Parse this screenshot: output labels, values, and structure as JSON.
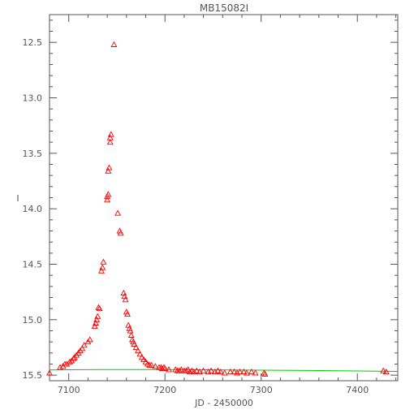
{
  "chart_data": {
    "type": "scatter",
    "title": "MB15082I",
    "xlabel": "JD - 2450000",
    "ylabel": "I",
    "xlim": [
      7080,
      7442
    ],
    "ylim": [
      15.55,
      12.25
    ],
    "y_inverted": true,
    "grid": false,
    "x_ticks": [
      7100,
      7200,
      7300,
      7400
    ],
    "y_ticks": [
      12.5,
      13.0,
      13.5,
      14.0,
      14.5,
      15.0,
      15.5
    ],
    "x_tick_labels": [
      "7100",
      "7200",
      "7300",
      "7400"
    ],
    "y_tick_labels": [
      "12.5",
      "13.0",
      "13.5",
      "14.0",
      "14.5",
      "15.0",
      "15.5"
    ],
    "series": [
      {
        "marker": "triangle",
        "color": "#ff0000",
        "points": [
          [
            7080,
            15.48
          ],
          [
            7091,
            15.43
          ],
          [
            7094,
            15.42
          ],
          [
            7096,
            15.4
          ],
          [
            7098,
            15.4
          ],
          [
            7101,
            15.38
          ],
          [
            7103,
            15.37
          ],
          [
            7105,
            15.35
          ],
          [
            7106,
            15.34
          ],
          [
            7108,
            15.32
          ],
          [
            7110,
            15.3
          ],
          [
            7112,
            15.28
          ],
          [
            7114,
            15.26
          ],
          [
            7116,
            15.23
          ],
          [
            7120,
            15.2
          ],
          [
            7122,
            15.18
          ],
          [
            7127,
            15.06
          ],
          [
            7128,
            15.03
          ],
          [
            7129,
            15.0
          ],
          [
            7130,
            14.97
          ],
          [
            7131,
            14.89
          ],
          [
            7132,
            14.9
          ],
          [
            7134,
            14.56
          ],
          [
            7135,
            14.53
          ],
          [
            7136,
            14.48
          ],
          [
            7140,
            13.92
          ],
          [
            7140,
            13.89
          ],
          [
            7141,
            13.87
          ],
          [
            7141,
            13.66
          ],
          [
            7142,
            13.63
          ],
          [
            7143,
            13.4
          ],
          [
            7143,
            13.36
          ],
          [
            7144,
            13.33
          ],
          [
            7147,
            12.52
          ],
          [
            7151,
            14.04
          ],
          [
            7153,
            14.2
          ],
          [
            7154,
            14.22
          ],
          [
            7157,
            14.76
          ],
          [
            7158,
            14.79
          ],
          [
            7159,
            14.82
          ],
          [
            7160,
            14.93
          ],
          [
            7161,
            14.95
          ],
          [
            7162,
            15.05
          ],
          [
            7163,
            15.08
          ],
          [
            7164,
            15.1
          ],
          [
            7165,
            15.14
          ],
          [
            7166,
            15.18
          ],
          [
            7167,
            15.2
          ],
          [
            7168,
            15.22
          ],
          [
            7170,
            15.25
          ],
          [
            7172,
            15.28
          ],
          [
            7174,
            15.31
          ],
          [
            7176,
            15.34
          ],
          [
            7178,
            15.36
          ],
          [
            7180,
            15.38
          ],
          [
            7182,
            15.4
          ],
          [
            7184,
            15.41
          ],
          [
            7186,
            15.41
          ],
          [
            7190,
            15.42
          ],
          [
            7194,
            15.43
          ],
          [
            7196,
            15.43
          ],
          [
            7197,
            15.44
          ],
          [
            7199,
            15.43
          ],
          [
            7200,
            15.44
          ],
          [
            7204,
            15.45
          ],
          [
            7211,
            15.45
          ],
          [
            7213,
            15.46
          ],
          [
            7215,
            15.46
          ],
          [
            7217,
            15.45
          ],
          [
            7220,
            15.46
          ],
          [
            7222,
            15.46
          ],
          [
            7224,
            15.45
          ],
          [
            7226,
            15.47
          ],
          [
            7228,
            15.46
          ],
          [
            7230,
            15.47
          ],
          [
            7233,
            15.46
          ],
          [
            7236,
            15.47
          ],
          [
            7240,
            15.46
          ],
          [
            7245,
            15.47
          ],
          [
            7248,
            15.46
          ],
          [
            7252,
            15.47
          ],
          [
            7255,
            15.46
          ],
          [
            7258,
            15.47
          ],
          [
            7262,
            15.48
          ],
          [
            7268,
            15.47
          ],
          [
            7272,
            15.47
          ],
          [
            7275,
            15.48
          ],
          [
            7278,
            15.47
          ],
          [
            7282,
            15.47
          ],
          [
            7285,
            15.48
          ],
          [
            7290,
            15.47
          ],
          [
            7294,
            15.48
          ],
          [
            7303,
            15.48
          ],
          [
            7304,
            15.49
          ],
          [
            7427,
            15.46
          ],
          [
            7430,
            15.47
          ]
        ]
      },
      {
        "marker": "line",
        "color": "#00cc00",
        "points": [
          [
            7080,
            15.453
          ],
          [
            7100,
            15.451
          ],
          [
            7150,
            15.449
          ],
          [
            7200,
            15.45
          ],
          [
            7250,
            15.452
          ],
          [
            7300,
            15.455
          ],
          [
            7350,
            15.458
          ],
          [
            7400,
            15.462
          ],
          [
            7442,
            15.466
          ]
        ]
      }
    ],
    "colors": {
      "axis": "#555555",
      "points": "#ff0000",
      "model": "#00cc00"
    }
  }
}
